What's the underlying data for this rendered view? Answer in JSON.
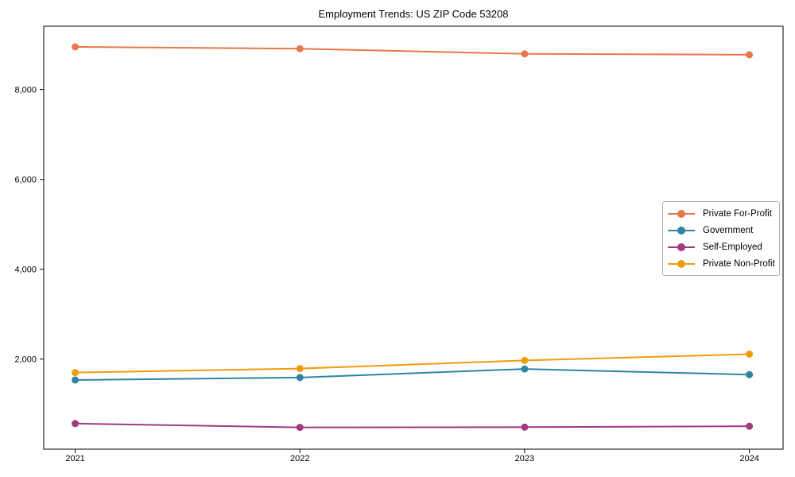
{
  "chart_data": {
    "type": "line",
    "title": "Employment Trends: US ZIP Code 53208",
    "xlabel": "",
    "ylabel": "",
    "x": [
      2021,
      2022,
      2023,
      2024
    ],
    "x_tick_labels": [
      "2021",
      "2022",
      "2023",
      "2024"
    ],
    "y_ticks": [
      2000,
      4000,
      6000,
      8000
    ],
    "y_tick_labels": [
      "2,000",
      "4,000",
      "6,000",
      "8,000"
    ],
    "xlim": [
      2020.86,
      2024.15
    ],
    "ylim": [
      -5,
      9410
    ],
    "grid": false,
    "marker": "circle",
    "legend_position": "middle-right",
    "series": [
      {
        "name": "Private For-Profit",
        "color": "#e8784a",
        "values": [
          8950,
          8910,
          8795,
          8775
        ]
      },
      {
        "name": "Government",
        "color": "#2e85a3",
        "values": [
          1535,
          1590,
          1780,
          1655
        ]
      },
      {
        "name": "Self-Employed",
        "color": "#a13a7e",
        "values": [
          565,
          480,
          485,
          505
        ]
      },
      {
        "name": "Private Non-Profit",
        "color": "#f09c0d",
        "values": [
          1700,
          1790,
          1970,
          2110
        ]
      }
    ]
  },
  "colors": {
    "spine": "#000000",
    "legend_border": "#b0b0b0",
    "background": "#ffffff"
  }
}
